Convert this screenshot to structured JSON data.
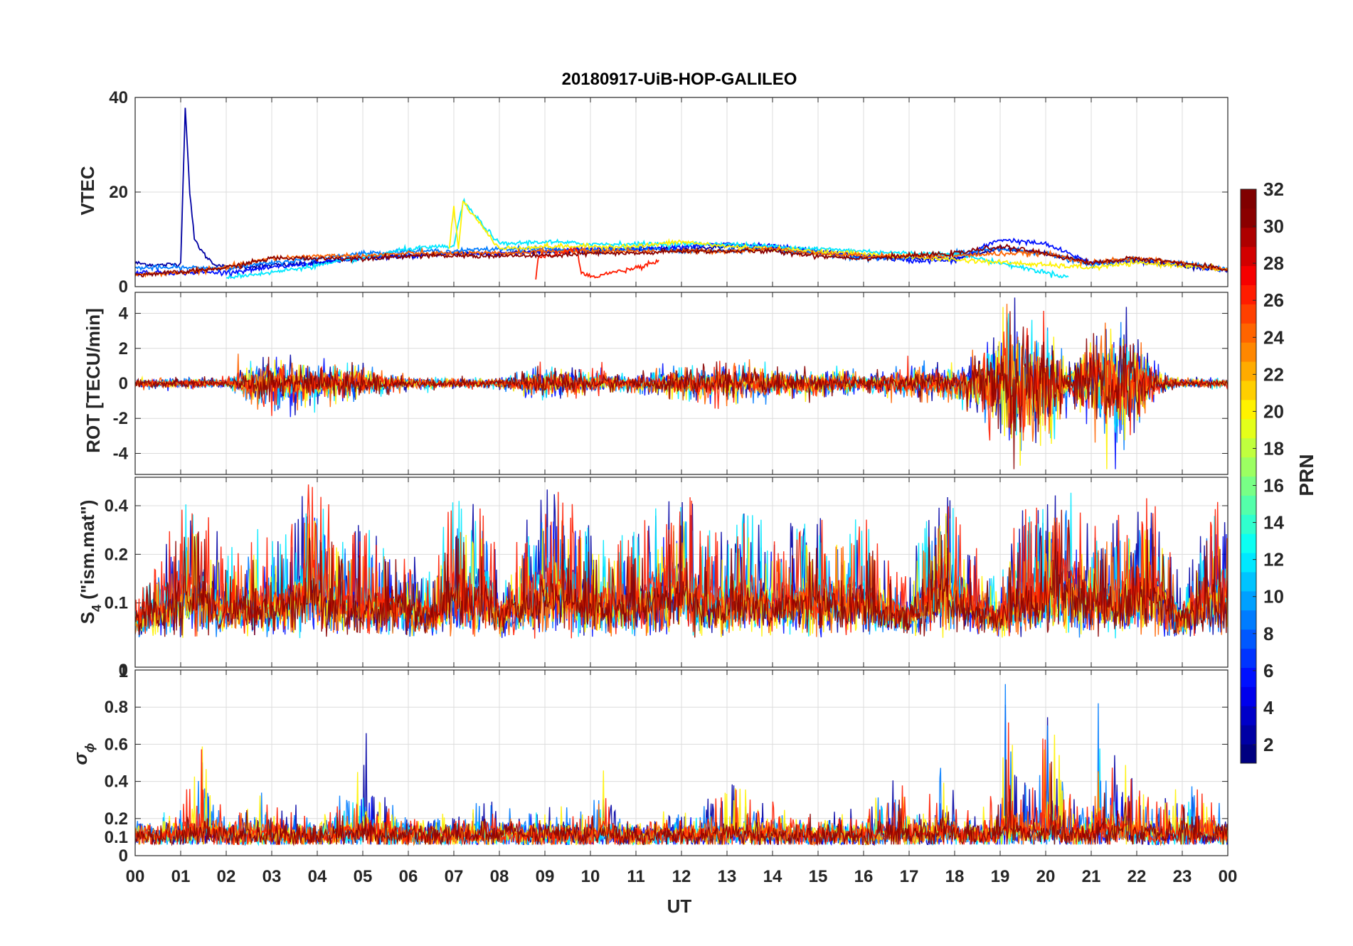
{
  "chart_data": [
    {
      "type": "line",
      "title": "20180917-UiB-HOP-GALILEO",
      "panel": "VTEC",
      "ylabel": "VTEC",
      "xlabel": "",
      "xlim": [
        0,
        24
      ],
      "ylim": [
        0,
        40
      ],
      "yticks": [
        0,
        20,
        40
      ],
      "ytick_labels": [
        "0",
        "20",
        "40"
      ],
      "grid": true,
      "series_description": "Vertical TEC per Galileo PRN, mostly 2–9 TECU; PRN ~2 starts near 38 at 01:10 UT and decays to ~5 by 01:40; PRN ~20 spikes to ~18 at ~07:00 UT.",
      "series": [
        {
          "name": "PRN 2",
          "prn": 2,
          "x": [
            0,
            0.5,
            1.0,
            1.1,
            1.2,
            1.3,
            1.5,
            1.7,
            2,
            3,
            4,
            5,
            6,
            7,
            8,
            9,
            10,
            11,
            12,
            13,
            14,
            15,
            16,
            17,
            18,
            19,
            20,
            21,
            22,
            23,
            24
          ],
          "values": [
            5,
            4.5,
            4.8,
            38,
            20,
            10,
            7,
            5,
            4,
            4.5,
            5,
            6,
            6.5,
            7,
            7,
            7.5,
            7.5,
            8,
            8,
            8.5,
            8,
            7,
            6.5,
            6,
            6,
            8,
            7,
            5,
            5.5,
            4.5,
            3.5
          ]
        },
        {
          "name": "PRN 5",
          "prn": 5,
          "x": [
            0,
            2,
            3,
            4,
            5,
            6,
            7,
            8,
            9,
            10,
            11,
            12,
            13,
            14,
            15,
            16,
            17,
            18,
            19,
            20,
            21,
            22,
            23,
            24
          ],
          "values": [
            3,
            3,
            4,
            5,
            6,
            6.5,
            7,
            7,
            7.5,
            8,
            8,
            8.5,
            9,
            8.5,
            7.5,
            6.5,
            5.5,
            5.5,
            10,
            9,
            5,
            5.5,
            4.5,
            3.5
          ]
        },
        {
          "name": "PRN 9",
          "prn": 9,
          "x": [
            0,
            2,
            3,
            4,
            5,
            6,
            7,
            8,
            9,
            10,
            11,
            12,
            13,
            14,
            15,
            16,
            17,
            18,
            19,
            20,
            21,
            22,
            23,
            24
          ],
          "values": [
            4,
            4,
            5,
            6,
            7,
            7.5,
            7.5,
            8,
            8,
            7.5,
            8,
            7.5,
            7.5,
            8,
            7,
            6,
            6,
            7,
            8,
            7,
            4.5,
            6,
            5,
            3.5
          ]
        },
        {
          "name": "PRN 12",
          "prn": 12,
          "x": [
            2,
            3,
            4,
            5,
            6,
            7,
            7.2,
            8,
            9,
            10,
            11,
            12,
            13,
            14,
            15,
            16,
            17,
            18,
            19,
            20,
            20.5
          ],
          "values": [
            2,
            3,
            4.5,
            6,
            8,
            8.5,
            18,
            9,
            9.5,
            9,
            9,
            9,
            9,
            8.5,
            8,
            7.5,
            7,
            7,
            5,
            3,
            2
          ]
        },
        {
          "name": "PRN 20",
          "prn": 20,
          "x": [
            6.9,
            7.0,
            7.1,
            7.2,
            8,
            9,
            10,
            11,
            12,
            13,
            14,
            21,
            22,
            23,
            24
          ],
          "values": [
            8,
            17,
            8,
            18,
            8,
            8.5,
            8.5,
            8.5,
            9.5,
            8.5,
            8,
            4,
            5,
            4.5,
            3.5
          ]
        },
        {
          "name": "PRN 24",
          "prn": 24,
          "x": [
            0,
            1,
            2,
            3,
            4,
            5,
            6,
            7,
            8,
            9,
            10,
            11,
            12,
            13,
            14,
            15,
            16,
            17,
            18,
            19,
            20,
            21,
            22,
            23,
            24
          ],
          "values": [
            2.5,
            3,
            4,
            6,
            6.5,
            6.5,
            7,
            7,
            7,
            7.5,
            7.5,
            7.5,
            7.5,
            7.5,
            8,
            7,
            6.5,
            6.5,
            6.5,
            7,
            7,
            5,
            6,
            5,
            3.5
          ]
        },
        {
          "name": "PRN 27",
          "prn": 27,
          "x": [
            8.8,
            8.85,
            9,
            9.3,
            9.5,
            9.7,
            9.8,
            10,
            10.5,
            11,
            11.5
          ],
          "values": [
            1.5,
            6,
            6.5,
            7,
            7.5,
            8,
            3,
            2,
            3,
            4,
            5.5
          ]
        },
        {
          "name": "PRN 31",
          "prn": 31,
          "x": [
            0,
            1,
            2,
            3,
            4,
            5,
            6,
            7,
            8,
            9,
            10,
            11,
            12,
            13,
            14,
            15,
            16,
            17,
            18,
            19,
            20,
            21,
            22,
            23,
            24
          ],
          "values": [
            2.5,
            3,
            4,
            6,
            6,
            6,
            6.5,
            6.5,
            6.5,
            6.5,
            7,
            7,
            7.5,
            7.5,
            7.5,
            6.5,
            6,
            6.5,
            7,
            8.5,
            7,
            5,
            6,
            5,
            3.5
          ]
        }
      ]
    },
    {
      "type": "line",
      "panel": "ROT",
      "ylabel": "ROT [TECU/min]",
      "xlim": [
        0,
        24
      ],
      "ylim": [
        -5.2,
        5.2
      ],
      "yticks": [
        -4,
        -2,
        0,
        2,
        4
      ],
      "ytick_labels": [
        "-4",
        "-2",
        "0",
        "2",
        "4"
      ],
      "grid": true,
      "series_description": "Rate of TEC per PRN fluctuating around 0; amplitude ~0.3 quiet, ~1–2 near 03–05, 09–14, 17–18 UT, up to ±4–5 near 19–20 UT and 21–22 UT; minimum ~-4.3 near 19.1 UT; PRN 20 dip to -3.3 at 13.4 UT; PRN 12 dip to -3.2 at 2.6 UT.",
      "activity_profile": {
        "x": [
          0,
          1,
          2,
          2.5,
          3,
          4,
          5,
          6,
          7,
          8,
          9,
          10,
          11,
          12,
          13,
          14,
          15,
          16,
          17,
          18,
          18.9,
          19.2,
          19.6,
          20,
          20.5,
          21,
          21.4,
          21.8,
          22.5,
          23,
          24
        ],
        "amplitude": [
          0.3,
          0.3,
          0.3,
          1.2,
          1.5,
          1.2,
          1,
          0.4,
          0.3,
          0.3,
          0.9,
          0.7,
          0.5,
          1.0,
          1.1,
          0.9,
          0.8,
          0.6,
          0.9,
          1.0,
          2.5,
          4.3,
          4.0,
          3.8,
          1.0,
          2.5,
          3.5,
          3.3,
          0.6,
          0.3,
          0.3
        ]
      }
    },
    {
      "type": "line",
      "panel": "S4",
      "ylabel": "S4 (\"ism.mat\")",
      "ylabel_main": "S",
      "ylabel_sub": "4",
      "ylabel_rest": " (\"ism.mat\")",
      "xlim": [
        0,
        24
      ],
      "ylim": [
        0.04,
        0.6
      ],
      "yscale": "log",
      "yticks": [
        0.1,
        0.2,
        0.4
      ],
      "ytick_labels": [
        "0.1",
        "0.2",
        "0.4"
      ],
      "grid": true,
      "series_description": "Amplitude scintillation index per PRN; background 0.05–0.1 with bursts to 0.3–0.6, peaks near 03.8 UT (~0.6), 07–07.5 UT (~0.45), 09.3 UT (~0.53), 12 UT (~0.55), 17.8 UT (~0.56), 20.4 UT (~0.6).",
      "activity_profile": {
        "x": [
          0,
          0.5,
          1,
          1.5,
          2,
          2.5,
          3,
          3.5,
          3.8,
          4.5,
          5,
          5.5,
          6,
          6.5,
          7,
          7.3,
          7.8,
          8,
          9,
          9.3,
          10,
          10.5,
          11,
          12,
          12.5,
          13,
          13.5,
          14,
          15,
          15.5,
          16,
          16.5,
          17,
          17.5,
          17.8,
          18.5,
          19,
          19.5,
          20,
          20.4,
          21,
          21.5,
          22,
          22.3,
          23,
          23.6,
          24
        ],
        "peak": [
          0.1,
          0.2,
          0.4,
          0.42,
          0.2,
          0.3,
          0.25,
          0.35,
          0.6,
          0.3,
          0.3,
          0.3,
          0.2,
          0.15,
          0.45,
          0.45,
          0.4,
          0.1,
          0.5,
          0.53,
          0.3,
          0.25,
          0.3,
          0.55,
          0.3,
          0.3,
          0.4,
          0.3,
          0.35,
          0.35,
          0.35,
          0.2,
          0.15,
          0.4,
          0.56,
          0.2,
          0.15,
          0.4,
          0.4,
          0.6,
          0.3,
          0.35,
          0.45,
          0.5,
          0.1,
          0.4,
          0.45
        ]
      }
    },
    {
      "type": "line",
      "panel": "sigma_phi",
      "ylabel": "σ ϕ",
      "ylabel_main": "σ",
      "ylabel_sub": "ϕ",
      "xlabel": "UT",
      "xlim": [
        0,
        24
      ],
      "ylim": [
        0,
        1
      ],
      "yticks": [
        0,
        0.1,
        0.2,
        0.4,
        0.6,
        0.8
      ],
      "ytick_labels": [
        "0",
        "0.1",
        "0.2",
        "0.4",
        "0.6",
        "0.8"
      ],
      "ytop_label": "1",
      "grid": true,
      "series_description": "Phase scintillation index per PRN; background ~0.1 with spikes ~0.6 at 01.5 UT, ~0.77 at 05.1 UT, ~0.5 at 10.3 UT, ~0.4 at 13.3 UT, ~0.45 at 16.7 UT, ~0.5 at 17.7 UT, ~1.0 at 19.1, 20.1, 21.2 UT, ~0.7 at 21.7 UT.",
      "activity_profile": {
        "x": [
          0,
          0.5,
          1,
          1.3,
          1.5,
          1.7,
          2,
          3,
          3.1,
          4,
          4.5,
          4.8,
          5.0,
          5.1,
          5.3,
          6,
          7,
          7.5,
          8,
          9,
          9.5,
          10,
          10.3,
          10.6,
          11,
          12,
          12.8,
          13.3,
          13.6,
          14,
          15,
          15.5,
          16,
          16.7,
          17,
          17.5,
          17.7,
          18,
          18.5,
          19,
          19.1,
          19.3,
          19.8,
          20.1,
          20.4,
          21,
          21.2,
          21.4,
          21.7,
          22,
          22.5,
          23,
          23.5,
          24
        ],
        "peak": [
          0.15,
          0.15,
          0.28,
          0.4,
          0.62,
          0.35,
          0.2,
          0.32,
          0.25,
          0.16,
          0.3,
          0.42,
          0.55,
          0.77,
          0.3,
          0.18,
          0.2,
          0.25,
          0.25,
          0.22,
          0.25,
          0.2,
          0.5,
          0.2,
          0.18,
          0.22,
          0.35,
          0.4,
          0.3,
          0.25,
          0.2,
          0.25,
          0.2,
          0.45,
          0.3,
          0.3,
          0.5,
          0.3,
          0.2,
          0.4,
          1.0,
          0.5,
          0.35,
          1.0,
          0.3,
          0.3,
          1.0,
          0.5,
          0.7,
          0.35,
          0.25,
          0.42,
          0.3,
          0.2
        ]
      },
      "xticks": [
        0,
        1,
        2,
        3,
        4,
        5,
        6,
        7,
        8,
        9,
        10,
        11,
        12,
        13,
        14,
        15,
        16,
        17,
        18,
        19,
        20,
        21,
        22,
        23,
        24
      ],
      "xtick_labels": [
        "00",
        "01",
        "02",
        "03",
        "04",
        "05",
        "06",
        "07",
        "08",
        "09",
        "10",
        "11",
        "12",
        "13",
        "14",
        "15",
        "16",
        "17",
        "18",
        "19",
        "20",
        "21",
        "22",
        "23",
        "00"
      ]
    }
  ],
  "colorbar": {
    "label": "PRN",
    "min": 1,
    "max": 32,
    "ticks": [
      2,
      4,
      6,
      8,
      10,
      12,
      14,
      16,
      18,
      20,
      22,
      24,
      26,
      28,
      30,
      32
    ],
    "tick_labels": [
      "2",
      "4",
      "6",
      "8",
      "10",
      "12",
      "14",
      "16",
      "18",
      "20",
      "22",
      "24",
      "26",
      "28",
      "30",
      "32"
    ],
    "colormap": "jet",
    "colors": [
      "#000080",
      "#0000a4",
      "#0000c8",
      "#0000ec",
      "#0010ff",
      "#0034ff",
      "#0058ff",
      "#007cff",
      "#00a0ff",
      "#00c4ff",
      "#00e8ff",
      "#0cfff2",
      "#30ffce",
      "#54ffaa",
      "#78ff86",
      "#9cff62",
      "#c0ff3e",
      "#e4ff1a",
      "#fff200",
      "#ffcf00",
      "#ffab00",
      "#ff8700",
      "#ff6400",
      "#ff4000",
      "#ff1c00",
      "#f60000",
      "#d20000",
      "#ae0000",
      "#8a0000",
      "#800000"
    ]
  }
}
